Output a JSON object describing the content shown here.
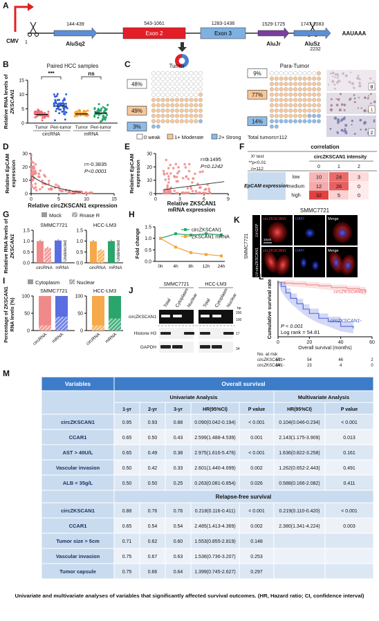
{
  "A": {
    "label": "A",
    "promoter": "CMV",
    "start": "1",
    "end": "2232",
    "polyA": "AAUAAA",
    "elements": [
      {
        "range": "144-439",
        "name": "AluSq2"
      },
      {
        "range": "543-1061",
        "name": "Exon 2"
      },
      {
        "range": "1283-1436",
        "name": "Exon 3"
      },
      {
        "range": "1529-1725",
        "name": "AluJr"
      },
      {
        "range": "1747-2083",
        "name": "AluSz"
      }
    ]
  },
  "B": {
    "label": "B",
    "title": "Paired HCC samples",
    "ylabel": [
      "Relative RNA levels of",
      "ZKSCAN1"
    ],
    "yticks": [
      "0",
      "5",
      "10",
      "15"
    ],
    "groups": [
      "Tumor",
      "Peri-tumor",
      "Tumor",
      "Peri-tumor"
    ],
    "rna": [
      "circRNA",
      "mRNA"
    ],
    "significance": [
      "***",
      "ns"
    ]
  },
  "C": {
    "label": "C",
    "tumor": "Tumor",
    "para": "Para-Tumor",
    "tumor_pct": [
      "48%",
      "49%",
      "3%"
    ],
    "para_pct": [
      "9%",
      "77%",
      "14%"
    ],
    "legend": [
      "0 weak",
      "1+ Moderate",
      "2+ Strong"
    ],
    "total": "Total tumors=112",
    "ihc": [
      "0",
      "1",
      "2"
    ]
  },
  "D": {
    "label": "D",
    "r": "r=-0.3835",
    "p": "P<0.0001",
    "ylabel": [
      "Relative EpCAM",
      "expression"
    ],
    "xlabel": "Relative circZKSCAN1 expression",
    "xticks": [
      "0",
      "5",
      "10",
      "15"
    ],
    "yticks": [
      "0",
      "10",
      "20",
      "30"
    ]
  },
  "E": {
    "label": "E",
    "r": "r=0.1495",
    "p": "P=0.1242",
    "ylabel": [
      "Relative EpCAM",
      "expression"
    ],
    "xlabel": [
      "Relative ZKSCAN1",
      "mRNA expression"
    ],
    "xticks": [
      "0",
      "3",
      "6",
      "9"
    ],
    "yticks": [
      "0",
      "10",
      "20",
      "30"
    ]
  },
  "F": {
    "label": "F",
    "title": "correlation",
    "test": [
      "X² test",
      "**p<0.01",
      "n=112"
    ],
    "intensity": "circZKSCAN1 intensity",
    "levels": [
      "0",
      "1",
      "2"
    ],
    "row_title": "EpCAM expression",
    "rows": [
      "low",
      "medium",
      "high"
    ],
    "cells": [
      [
        10,
        24,
        3
      ],
      [
        12,
        26,
        0
      ],
      [
        32,
        5,
        0
      ]
    ]
  },
  "G": {
    "label": "G",
    "legend": [
      "Mock",
      "Rnase R"
    ],
    "ylabel": [
      "Relative RNA levels of",
      "ZKSCAN1"
    ],
    "cells": [
      "SMMC7721",
      "HCC-LM3"
    ],
    "xticks": [
      "circRNA",
      "mRNA"
    ],
    "undetected": "Undetected",
    "yticks": [
      "0.0",
      "0.5",
      "1.0",
      "1.5"
    ],
    "bars": [
      [
        1.0,
        0.68,
        1.03,
        null
      ],
      [
        0.99,
        0.57,
        1.0,
        null
      ]
    ]
  },
  "H": {
    "label": "H",
    "legend": [
      "circZKSCAN1",
      "ZKSCAN1 mRNA"
    ],
    "ylabel": "Fold change",
    "xticks": [
      "0h",
      "4h",
      "8h",
      "12h",
      "24h"
    ],
    "yticks": [
      "0.0",
      "0.5",
      "1.0",
      "1.5"
    ],
    "circ": [
      1.0,
      1.2,
      1.14,
      1.2,
      1.15
    ],
    "mrna": [
      1.0,
      0.62,
      0.38,
      0.3,
      0.24
    ]
  },
  "K": {
    "label": "K",
    "title": "SMMC7721",
    "channels": [
      "circZKSCAN1",
      "DAPI",
      "Merge"
    ],
    "rows": [
      "LV-GFP",
      "LV-circZKSCAN1"
    ],
    "cell": "SMMC7721",
    "scale": "10um"
  },
  "I": {
    "label": "I",
    "legend": [
      "Cytoplasm",
      "Nuclear"
    ],
    "ylabel": [
      "Percentage of ZKSCAN1",
      "RNA levels (%)"
    ],
    "cells": [
      "SMMC7721",
      "HCC-LM3"
    ],
    "xticks": [
      "circRNA",
      "mRNA"
    ],
    "yticks": [
      "0",
      "50",
      "100"
    ],
    "nuclear": [
      [
        15,
        40
      ],
      [
        15,
        35
      ]
    ],
    "cytoplasm": [
      [
        85,
        60
      ],
      [
        85,
        65
      ]
    ]
  },
  "J": {
    "label": "J",
    "cells": [
      "SMMC7721",
      "HCC-LM3"
    ],
    "lanes": [
      "Total",
      "Cytoplasm",
      "Nuclear"
    ],
    "bp": "bp",
    "markers": [
      "200",
      "100"
    ],
    "blots": [
      "circZKSCAN1",
      "Histone H3",
      "GAPDH"
    ],
    "kda": [
      "17",
      "34"
    ]
  },
  "L": {
    "label": "L",
    "ylabel": "Cumulative survival rate",
    "groups": [
      "circZKSCAN1+",
      "circZKSCAN1-"
    ],
    "p": "P < 0.001",
    "logrank": "Log rank = 54.81",
    "xlabel": "Overall survival (months)",
    "xticks": [
      "0",
      "20",
      "40",
      "60"
    ],
    "risk_title": "No. at risk",
    "risk": [
      [
        57,
        54,
        46,
        2
      ],
      [
        54,
        23,
        4,
        0
      ]
    ]
  },
  "M": {
    "label": "M",
    "header": "Variables",
    "os_title": "Overall survival",
    "uni": "Univariate Analysis",
    "multi": "Multivariate Analysis",
    "columns": [
      "1-yr",
      "2-yr",
      "3-yr",
      "HR(95%CI)",
      "P value",
      "HR(95%CI)",
      "P value"
    ],
    "os_rows": [
      [
        "circZKSCAN1",
        "0.95",
        "0.93",
        "0.88",
        "0.090(0.042-0.194)",
        "< 0.001",
        "0.104(0.046-0.234)",
        "< 0.001"
      ],
      [
        "CCAR1",
        "0.65",
        "0.50",
        "0.43",
        "2.599(1.488-4.539)",
        "0.001",
        "2.143(1.175-3.909)",
        "0.013"
      ],
      [
        "AST > 40U/L",
        "0.65",
        "0.49",
        "0.38",
        "2.975(1.616-5.476)",
        "< 0.001",
        "1.636(0.822-3.258)",
        "0.161"
      ],
      [
        "Vascular invasion",
        "0.50",
        "0.42",
        "0.33",
        "2.601(1.440-4.699)",
        "0.002",
        "1.262(0.652-2.443)",
        "0.491"
      ],
      [
        "ALB < 35g/L",
        "0.50",
        "0.50",
        "0.25",
        "0.263(0.081-0.854)",
        "0.026",
        "0.588(0.166-2.082)",
        "0.411"
      ]
    ],
    "rfs_title": "Relapse-free survival",
    "rfs_rows": [
      [
        "circZKSCAN1",
        "0.88",
        "0.76",
        "0.76",
        "0.218(0.116-0.411)",
        "< 0.001",
        "0.219(0.110-0.420)",
        "< 0.001"
      ],
      [
        "CCAR1",
        "0.65",
        "0.54",
        "0.54",
        "2.485(1.413-4.369)",
        "0.002",
        "2.380(1.341-4.224)",
        "0.003"
      ],
      [
        "Tumor size > 5cm",
        "0.71",
        "0.62",
        "0.60",
        "1.553(0.855-2.819)",
        "0.148"
      ],
      [
        "Vascular invasion",
        "0.75",
        "0.67",
        "0.63",
        "1.536(0.736-3.207)",
        "0.253"
      ],
      [
        "Tumor capsule",
        "0.75",
        "0.66",
        "0.64",
        "1.399(0.745-2.627)",
        "0.297"
      ]
    ]
  },
  "caption": "Univariate and multivariate analyses of variables that significantly affected survival outcomes. (HR, Hazard ratio; CI, confidence interval)"
}
